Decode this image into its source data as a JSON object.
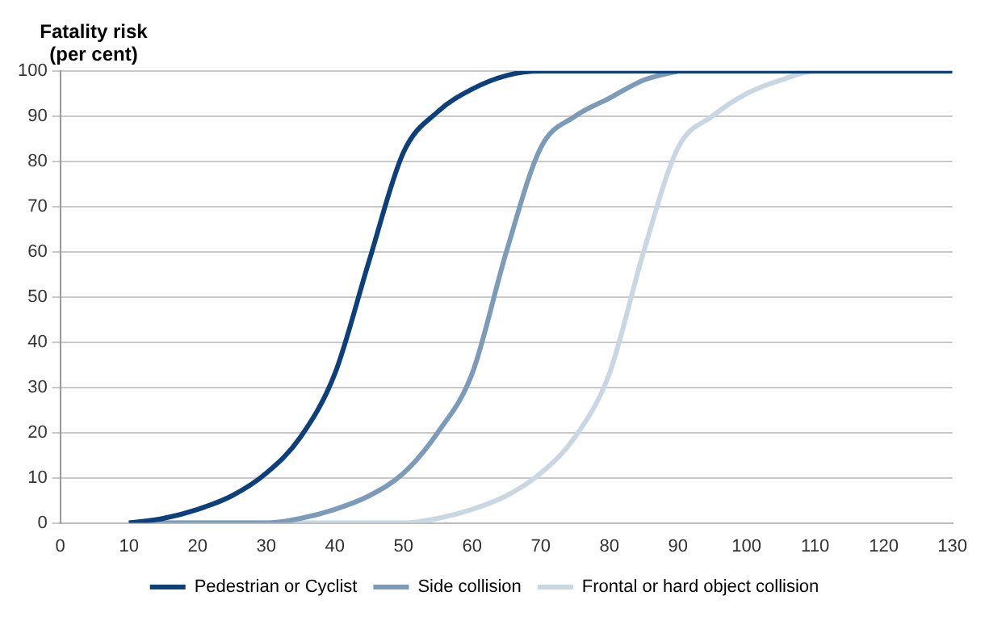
{
  "chart_data": {
    "type": "line",
    "ylabel": "Fatality risk\n(per cent)",
    "series": [
      {
        "name": "Pedestrian or Cyclist",
        "color": "#0d3f7a",
        "x": [
          10,
          15,
          20,
          25,
          30,
          35,
          40,
          45,
          50,
          55,
          60,
          65,
          70,
          75,
          80,
          90,
          100,
          110,
          120,
          130
        ],
        "values": [
          0,
          1,
          3,
          6,
          11,
          19,
          33,
          58,
          82,
          91,
          96,
          99,
          100,
          100,
          100,
          100,
          100,
          100,
          100,
          100
        ]
      },
      {
        "name": "Side collision",
        "color": "#7b9bb8",
        "x": [
          10,
          20,
          30,
          35,
          40,
          45,
          50,
          55,
          60,
          65,
          70,
          75,
          80,
          85,
          90
        ],
        "values": [
          0,
          0,
          0,
          1,
          3,
          6,
          11,
          20,
          33,
          60,
          83,
          90,
          94,
          98,
          100
        ]
      },
      {
        "name": "Frontal or hard object collision",
        "color": "#c9d7e3",
        "x": [
          10,
          20,
          30,
          40,
          50,
          55,
          60,
          65,
          70,
          75,
          80,
          85,
          90,
          95,
          100,
          105,
          110,
          120,
          130
        ],
        "values": [
          0,
          0,
          0,
          0,
          0,
          1,
          3,
          6,
          11,
          19,
          33,
          60,
          83,
          90,
          95,
          98,
          100,
          100,
          100
        ]
      }
    ],
    "xlim": [
      0,
      130
    ],
    "xticks": [
      0,
      10,
      20,
      30,
      40,
      50,
      60,
      70,
      80,
      90,
      100,
      110,
      120,
      130
    ],
    "ylim": [
      0,
      100
    ],
    "yticks": [
      0,
      10,
      20,
      30,
      40,
      50,
      60,
      70,
      80,
      90,
      100
    ],
    "grid": "y",
    "legend": "bottom",
    "marker": "none",
    "line_style": "solid"
  }
}
